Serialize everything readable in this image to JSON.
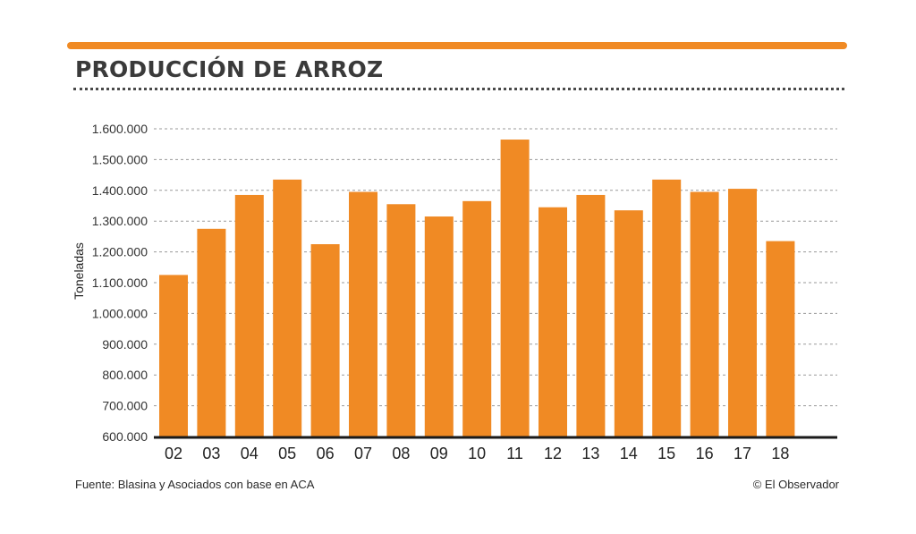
{
  "colors": {
    "accent": "#f08a24",
    "bar": "#f08a24",
    "grid": "#9a9a9a",
    "axis": "#1a1a1a",
    "text": "#333333"
  },
  "header": {
    "title": "PRODUCCIÓN DE ARROZ"
  },
  "footer": {
    "source": "Fuente: Blasina y Asociados con base en ACA",
    "credit": "© El Observador"
  },
  "chart_data": {
    "type": "bar",
    "title": "PRODUCCIÓN DE ARROZ",
    "xlabel": "",
    "ylabel": "Toneladas",
    "ylim": [
      600000,
      1600000
    ],
    "yticks": [
      600000,
      700000,
      800000,
      900000,
      1000000,
      1100000,
      1200000,
      1300000,
      1400000,
      1500000,
      1600000
    ],
    "ytick_labels": [
      "600.000",
      "700.000",
      "800.000",
      "900.000",
      "1.000.000",
      "1.100.000",
      "1.200.000",
      "1.300.000",
      "1.400.000",
      "1.500.000",
      "1.600.000"
    ],
    "categories": [
      "02",
      "03",
      "04",
      "05",
      "06",
      "07",
      "08",
      "09",
      "10",
      "11",
      "12",
      "13",
      "14",
      "15",
      "16",
      "17",
      "18"
    ],
    "values": [
      1125000,
      1275000,
      1385000,
      1435000,
      1225000,
      1395000,
      1355000,
      1315000,
      1365000,
      1565000,
      1345000,
      1385000,
      1335000,
      1435000,
      1395000,
      1405000,
      1235000
    ],
    "grid": true,
    "legend": "none"
  }
}
